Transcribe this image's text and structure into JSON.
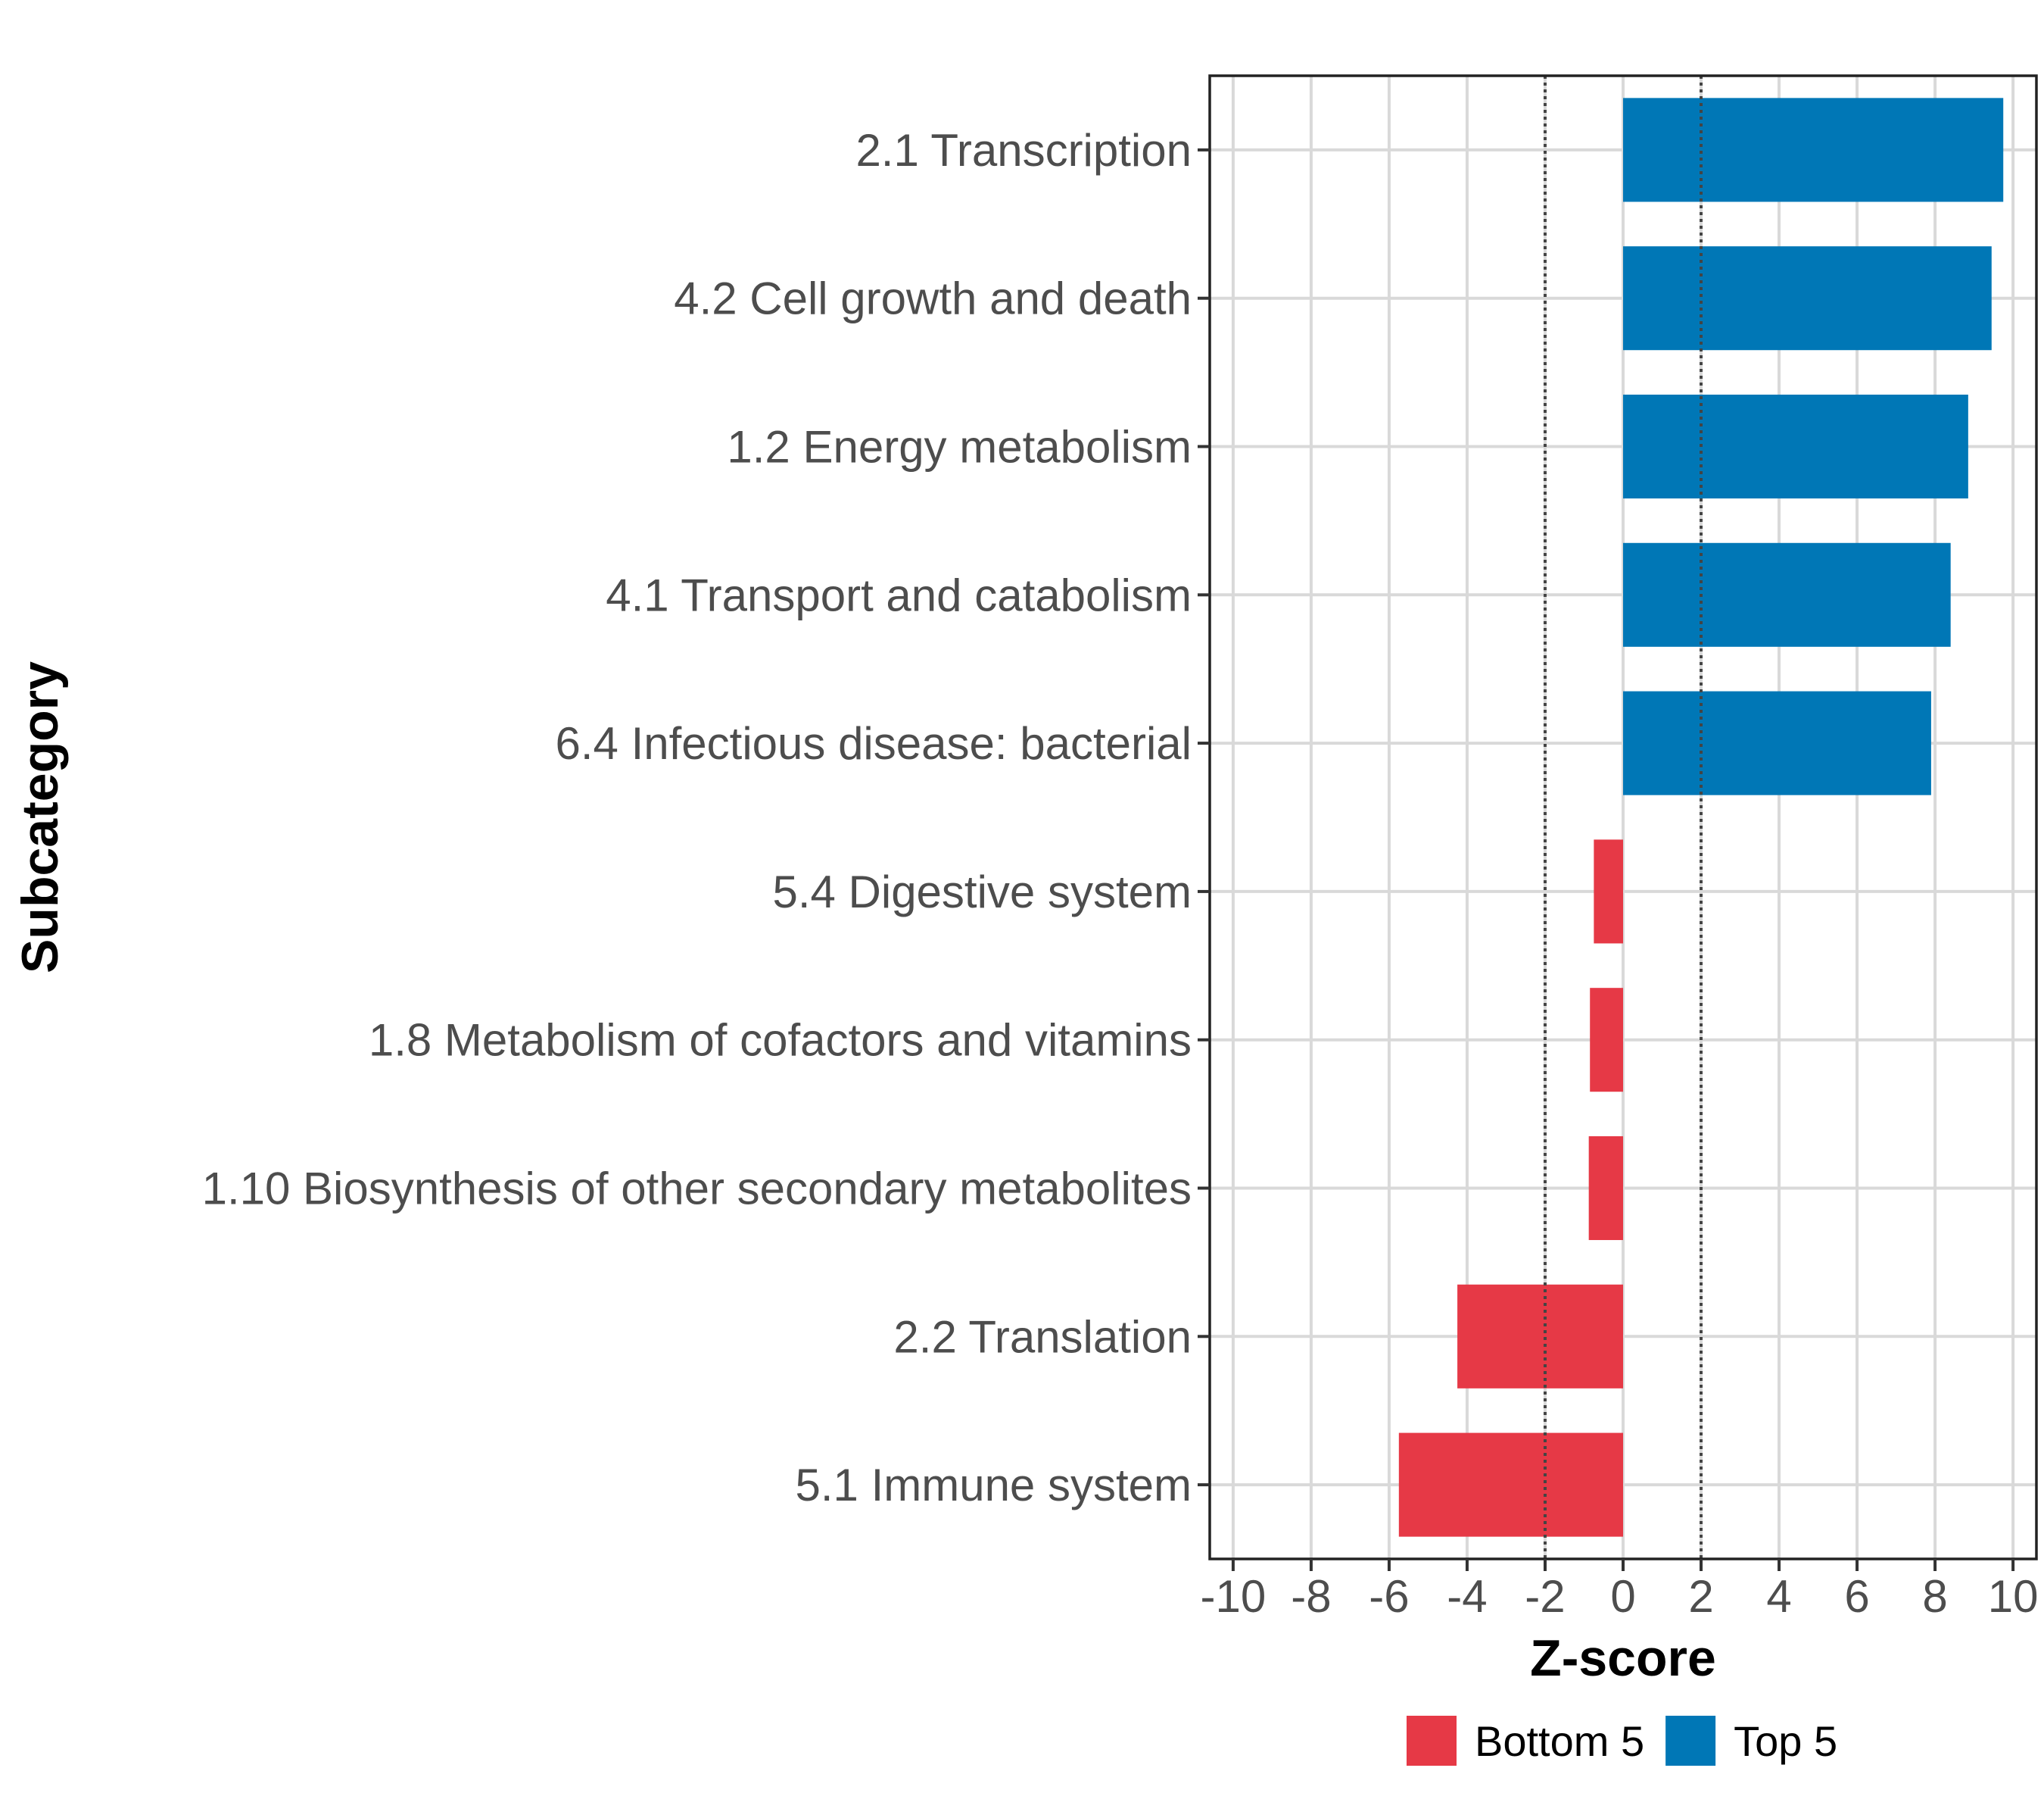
{
  "chart_data": {
    "type": "bar",
    "orientation": "horizontal",
    "title": "",
    "xlabel": "Z-score",
    "ylabel": "Subcategory",
    "xlim": [
      -10.6,
      10.6
    ],
    "x_ticks": [
      -10,
      -8,
      -6,
      -4,
      -2,
      0,
      2,
      4,
      6,
      8,
      10
    ],
    "x_tick_labels": [
      "-10",
      "-8",
      "-6",
      "-4",
      "-2",
      "0",
      "2",
      "4",
      "6",
      "8",
      "10"
    ],
    "reference_lines": [
      -2,
      2
    ],
    "grid": true,
    "legend_position": "bottom",
    "legend": [
      {
        "name": "Bottom 5",
        "color": "#E63946"
      },
      {
        "name": "Top 5",
        "color": "#0077B6"
      }
    ],
    "categories": [
      "2.1 Transcription",
      "4.2 Cell growth and death",
      "1.2 Energy metabolism",
      "4.1 Transport and catabolism",
      "6.4 Infectious disease: bacterial",
      "5.4 Digestive system",
      "1.8 Metabolism of cofactors and vitamins",
      "1.10 Biosynthesis of other secondary metabolites",
      "2.2 Translation",
      "5.1 Immune system"
    ],
    "values": [
      9.75,
      9.45,
      8.85,
      8.4,
      7.9,
      -0.75,
      -0.85,
      -0.88,
      -4.25,
      -5.75
    ],
    "groups": [
      "Top 5",
      "Top 5",
      "Top 5",
      "Top 5",
      "Top 5",
      "Bottom 5",
      "Bottom 5",
      "Bottom 5",
      "Bottom 5",
      "Bottom 5"
    ]
  }
}
